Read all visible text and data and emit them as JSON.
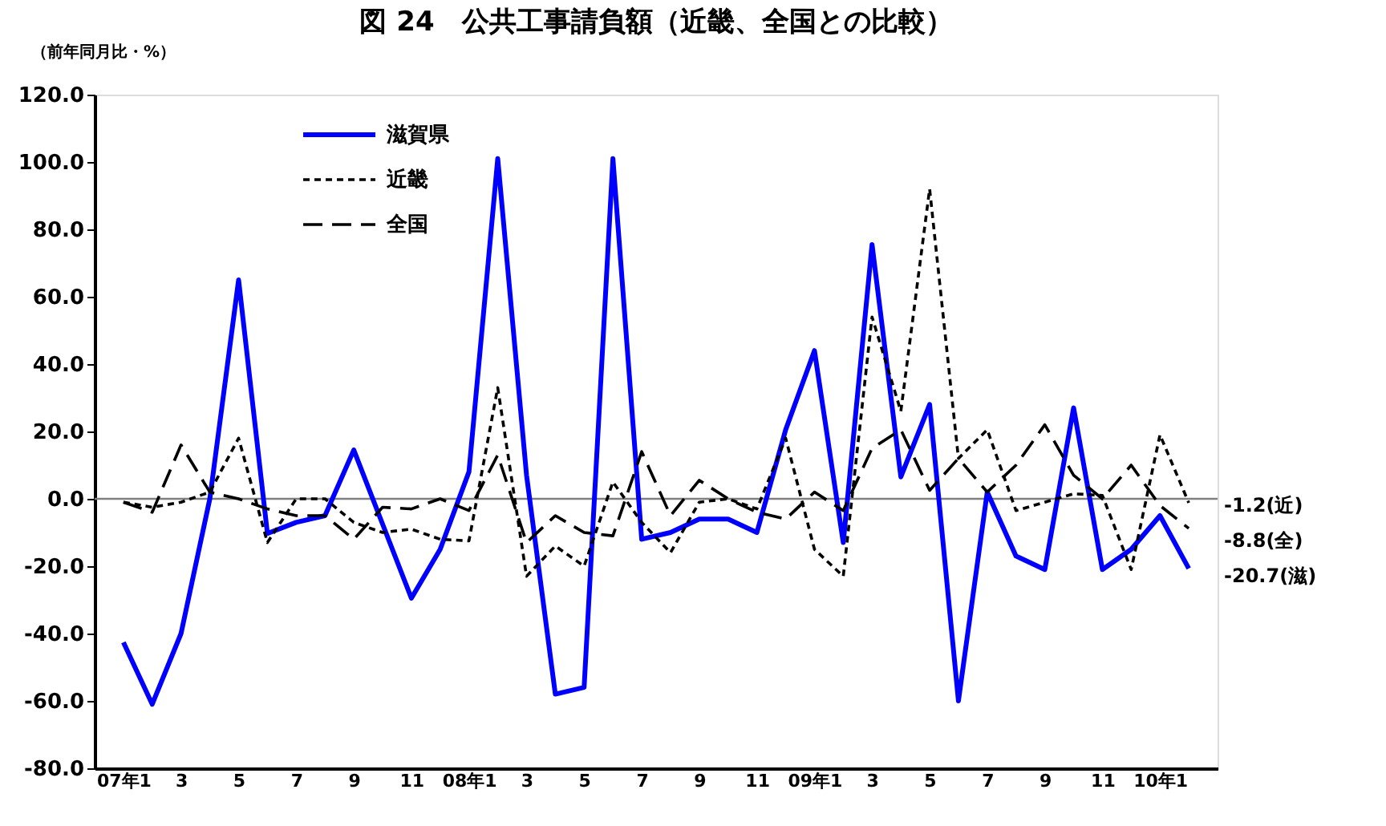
{
  "chart_data": {
    "type": "line",
    "title": "図 24　公共工事請負額（近畿、全国との比較）",
    "ylabel": "（前年同月比・%）",
    "categories": [
      "07年1",
      null,
      "3",
      null,
      "5",
      null,
      "7",
      null,
      "9",
      null,
      "11",
      null,
      "08年1",
      null,
      "3",
      null,
      "5",
      null,
      "7",
      null,
      "9",
      null,
      "11",
      null,
      "09年1",
      null,
      "3",
      null,
      "5",
      null,
      "7",
      null,
      "9",
      null,
      "11",
      null,
      "10年1",
      null
    ],
    "series": [
      {
        "name": "滋賀県",
        "color": "#0000ff",
        "line_style": "solid",
        "values": [
          -42.6,
          -61,
          -40,
          0,
          65,
          -10.3,
          -7,
          -5,
          14.5,
          -7.5,
          -29.5,
          -15,
          8,
          101,
          7,
          -58,
          -56,
          101,
          -12,
          -10,
          -6,
          -6,
          -10,
          20.5,
          44,
          -13,
          75.5,
          6.5,
          28,
          -60,
          2,
          -17,
          -21,
          27,
          -21,
          -15,
          -5,
          -20.7
        ]
      },
      {
        "name": "近畿",
        "color": "#000000",
        "line_style": "dotted",
        "values": [
          -1,
          -2.5,
          -1,
          2,
          18,
          -13,
          0,
          0,
          -7,
          -10,
          -9,
          -12,
          -12.5,
          33,
          -23,
          -14,
          -20,
          5,
          -7,
          -16,
          -1,
          0,
          -3,
          18,
          -15,
          -23,
          54,
          26,
          92,
          12,
          20.5,
          -3.5,
          -1,
          1.5,
          1,
          -21,
          19,
          -1.2
        ]
      },
      {
        "name": "全国",
        "color": "#000000",
        "line_style": "dashed",
        "values": [
          -1,
          -4,
          16,
          2,
          0,
          -3,
          -5,
          -5,
          -12,
          -2.5,
          -3,
          0,
          -3.5,
          13,
          -13,
          -5,
          -10,
          -11,
          14,
          -5,
          5.5,
          0,
          -4,
          -6,
          2,
          -3.5,
          15,
          20.5,
          2.5,
          12,
          2,
          10,
          22,
          7,
          0,
          10,
          -2,
          -8.8
        ]
      }
    ],
    "ylim": [
      -80,
      120
    ],
    "yticks": [
      {
        "value": -80,
        "label": "-80.0"
      },
      {
        "value": -60,
        "label": "-60.0"
      },
      {
        "value": -40,
        "label": "-40.0"
      },
      {
        "value": -20,
        "label": "-20.0"
      },
      {
        "value": 0,
        "label": "0.0"
      },
      {
        "value": 20,
        "label": "20.0"
      },
      {
        "value": 40,
        "label": "40.0"
      },
      {
        "value": 60,
        "label": "60.0"
      },
      {
        "value": 80,
        "label": "80.0"
      },
      {
        "value": 100,
        "label": "100.0"
      },
      {
        "value": 120,
        "label": "120.0"
      }
    ],
    "ref_lines": [
      {
        "axis": "y",
        "value": 0,
        "color": "#808080"
      }
    ],
    "annotations": [
      "-1.2(近)",
      "-8.8(全)",
      "-20.7(滋)"
    ],
    "legend": "top left",
    "grid": false,
    "marker": "none"
  }
}
